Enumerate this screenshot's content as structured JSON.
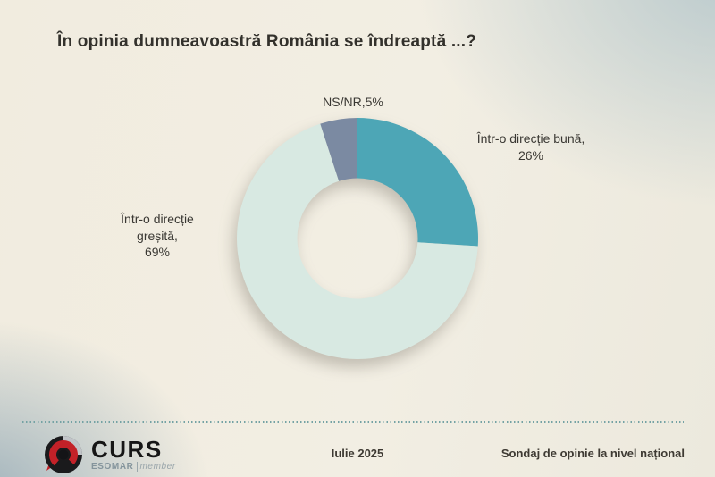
{
  "title": "În opinia dumneavoastră România se îndreaptă ...?",
  "chart_data": {
    "type": "pie",
    "subtype": "donut",
    "title": "În opinia dumneavoastră România se îndreaptă ...?",
    "categories": [
      "Într-o direcție bună",
      "Într-o direcție greșită",
      "NS/NR"
    ],
    "values": [
      26,
      69,
      5
    ],
    "unit": "%",
    "colors": [
      "#4da6b6",
      "#d8e9e2",
      "#7b8aa2"
    ],
    "start_angle_deg": 0,
    "direction": "clockwise",
    "inner_radius_ratio": 0.5,
    "legend": "none",
    "data_labels": [
      "Într-o direcție bună, 26%",
      "Într-o direcție greșită, 69%",
      "NS/NR,5%"
    ]
  },
  "labels": {
    "ns": "NS/NR,5%",
    "buna": {
      "l1": "Într-o direcție bună,",
      "l2": "26%"
    },
    "gresita": {
      "l1": "Într-o direcție",
      "l2": "greșită,",
      "l3": "69%"
    }
  },
  "footer": {
    "logo_name": "CURS",
    "logo_sub_left": "ESOMAR",
    "logo_sub_right": "member",
    "date": "Iulie 2025",
    "note": "Sondaj de opinie la nivel național"
  },
  "colors": {
    "slice_buna": "#4da6b6",
    "slice_gresita": "#d8e9e2",
    "slice_ns": "#7b8aa2",
    "background_cream": "#f1ecdf",
    "background_blue": "#c2d0d6",
    "text_dark": "#33312c",
    "divider_teal": "#74a2a4",
    "logo_red": "#c32128",
    "logo_black": "#1a1a1c"
  }
}
